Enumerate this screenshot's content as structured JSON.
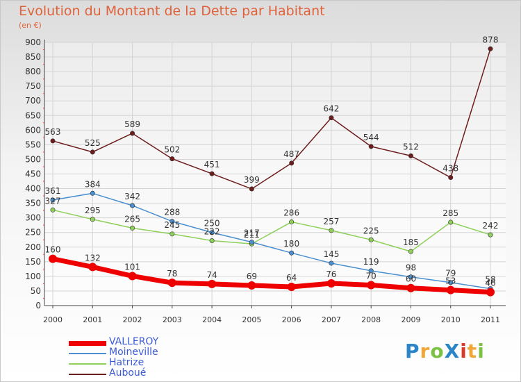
{
  "title": "Evolution du Montant de la Dette par Habitant",
  "unit_label": "(en €)",
  "logo": {
    "text": "ProXiti",
    "letter_colors": [
      "#2a86c9",
      "#f1a63a",
      "#7cc242",
      "#2a86c9",
      "#d83a2a",
      "#f1a63a",
      "#7cc242"
    ]
  },
  "chart_data": {
    "type": "line",
    "x": [
      "2000",
      "2001",
      "2002",
      "2003",
      "2004",
      "2005",
      "2006",
      "2007",
      "2008",
      "2009",
      "2010",
      "2011"
    ],
    "y_ticks": [
      0,
      50,
      100,
      150,
      200,
      250,
      300,
      350,
      400,
      450,
      500,
      550,
      600,
      650,
      700,
      750,
      800,
      850,
      900
    ],
    "ylim": [
      0,
      900
    ],
    "grid": true,
    "legend_position": "bottom-left",
    "series": [
      {
        "name": "VALLEROY",
        "color": "#ee0000",
        "values": [
          160,
          132,
          101,
          78,
          74,
          69,
          64,
          76,
          70,
          60,
          53,
          46
        ],
        "labels": [
          "160",
          "132",
          "101",
          "78",
          "74",
          "69",
          "64",
          "76",
          "70",
          "60",
          "53",
          "46"
        ]
      },
      {
        "name": "Moineville",
        "color": "#4a8fd0",
        "values": [
          361,
          384,
          342,
          288,
          250,
          217,
          180,
          145,
          119,
          98,
          79,
          58
        ],
        "labels": [
          "361",
          "384",
          "342",
          "288",
          "250",
          "217",
          "180",
          "145",
          "119",
          "98",
          "79",
          "58"
        ]
      },
      {
        "name": "Hatrize",
        "color": "#8ed05a",
        "values": [
          327,
          295,
          265,
          245,
          222,
          211,
          286,
          257,
          225,
          185,
          285,
          242
        ],
        "labels": [
          "327",
          "295",
          "265",
          "245",
          "222",
          "211",
          "286",
          "257",
          "225",
          "185",
          "285",
          "242"
        ]
      },
      {
        "name": "Auboué",
        "color": "#6e1d1d",
        "values": [
          563,
          525,
          589,
          502,
          451,
          399,
          487,
          642,
          544,
          512,
          438,
          878
        ],
        "labels": [
          "563",
          "525",
          "589",
          "502",
          "451",
          "399",
          "487",
          "642",
          "544",
          "512",
          "438",
          "878"
        ]
      }
    ]
  }
}
